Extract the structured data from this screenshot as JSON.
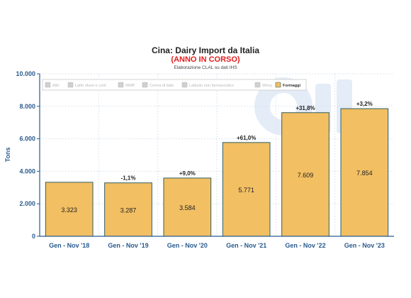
{
  "chart_data": {
    "type": "bar",
    "title": "Cina: Dairy Import da Italia",
    "subtitle": "(ANNO IN CORSO)",
    "source": "Elaborazione CLAL su dati IHS",
    "ylabel": "Tons",
    "xlabel": "",
    "ylim": [
      0,
      10000
    ],
    "yticks": [
      "0",
      "2.000",
      "4.000",
      "6.000",
      "8.000",
      "10.000"
    ],
    "categories": [
      "Gen - Nov '18",
      "Gen - Nov '19",
      "Gen - Nov '20",
      "Gen - Nov '21",
      "Gen - Nov '22",
      "Gen - Nov '23"
    ],
    "series": [
      {
        "name": "Formaggi",
        "values": [
          3323,
          3287,
          3584,
          5771,
          7609,
          7854
        ],
        "value_labels": [
          "3.323",
          "3.287",
          "3.584",
          "5.771",
          "7.609",
          "7.854"
        ],
        "change_labels": [
          "",
          "-1,1%",
          "+9,0%",
          "+61,0%",
          "+31,8%",
          "+3,2%"
        ]
      }
    ],
    "legend": {
      "placement": "top-left",
      "items": [
        {
          "name": "Altri",
          "active": false
        },
        {
          "name": "Latte sfuso e conf.",
          "active": false
        },
        {
          "name": "WMP",
          "active": false
        },
        {
          "name": "Crema di latte",
          "active": false
        },
        {
          "name": "Lattosio non farmaceutico",
          "active": false
        },
        {
          "name": "Whey",
          "active": false
        },
        {
          "name": "Formaggi",
          "active": true
        }
      ]
    },
    "grid": true,
    "colors": {
      "bar_fill": "#f2bf63",
      "bar_stroke": "#2f5e63",
      "axis": "#2a5b8f",
      "grid": "#dde6ef",
      "legend_inactive": "#d0d0d0",
      "legend_active": "#f2bf63",
      "watermark": "#e4ecf7"
    }
  }
}
